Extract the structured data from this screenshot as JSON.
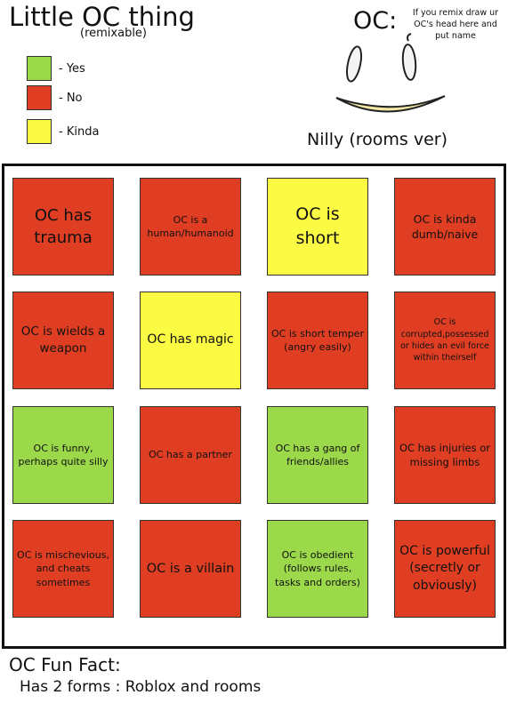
{
  "header": {
    "title": "Little OC thing",
    "subtitle": "(remixable)"
  },
  "legend": [
    {
      "label": "- Yes",
      "color": "#9bd84a"
    },
    {
      "label": "- No",
      "color": "#e03e22"
    },
    {
      "label": "- Kinda",
      "color": "#fbfb44"
    }
  ],
  "oc": {
    "label": "OC:",
    "note": "If you remix draw ur OC's head here and put name",
    "name": "Nilly (rooms ver)"
  },
  "grid": {
    "cells": [
      {
        "text": "OC has trauma",
        "color": "#e03e22"
      },
      {
        "text": "OC is a human/humanoid",
        "color": "#e03e22"
      },
      {
        "text": "OC is short",
        "color": "#fbfb44"
      },
      {
        "text": "OC is kinda dumb/naive",
        "color": "#e03e22"
      },
      {
        "text": "OC is wields a weapon",
        "color": "#e03e22"
      },
      {
        "text": "OC has magic",
        "color": "#fbfb44"
      },
      {
        "text": "OC is short temper (angry easily)",
        "color": "#e03e22"
      },
      {
        "text": "OC is corrupted,possessed or hides an evil force within theirself",
        "color": "#e03e22"
      },
      {
        "text": "OC is funny, perhaps quite silly",
        "color": "#9bd84a"
      },
      {
        "text": "OC has a partner",
        "color": "#e03e22"
      },
      {
        "text": "OC has a gang of friends/allies",
        "color": "#9bd84a"
      },
      {
        "text": "OC has injuries or missing limbs",
        "color": "#e03e22"
      },
      {
        "text": "OC is mischevious, and cheats sometimes",
        "color": "#e03e22"
      },
      {
        "text": "OC is a villain",
        "color": "#e03e22"
      },
      {
        "text": "OC is obedient (follows rules, tasks and orders)",
        "color": "#9bd84a"
      },
      {
        "text": "OC is powerful (secretly or obviously)",
        "color": "#e03e22"
      }
    ]
  },
  "fun_fact": {
    "title": "OC Fun Fact:",
    "text": "Has 2 forms : Roblox and rooms"
  }
}
